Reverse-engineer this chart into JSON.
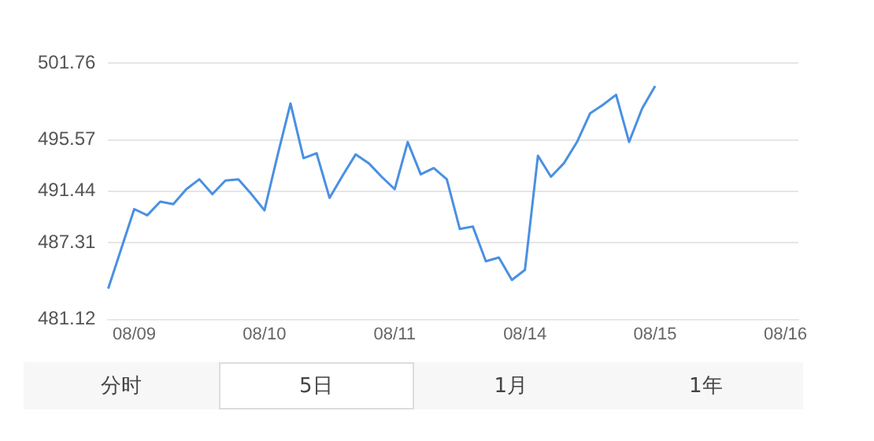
{
  "chart_data": {
    "type": "line",
    "categories": [
      null,
      null,
      "08/09",
      null,
      null,
      null,
      null,
      null,
      null,
      null,
      null,
      null,
      "08/10",
      null,
      null,
      null,
      null,
      null,
      null,
      null,
      null,
      null,
      "08/11",
      null,
      null,
      null,
      null,
      null,
      null,
      null,
      null,
      null,
      "08/14",
      null,
      null,
      null,
      null,
      null,
      null,
      null,
      null,
      null,
      "08/15",
      null,
      null,
      null,
      null,
      null,
      null,
      null,
      null,
      null,
      "08/16",
      null
    ],
    "series": [
      {
        "color": "#4a90e2",
        "values": [
          483.6,
          486.8,
          490.0,
          489.5,
          490.6,
          490.4,
          491.6,
          492.4,
          491.2,
          492.3,
          492.4,
          491.2,
          489.9,
          494.3,
          498.5,
          494.1,
          494.5,
          490.9,
          492.7,
          494.4,
          493.7,
          492.6,
          491.6,
          495.4,
          492.8,
          493.3,
          492.4,
          488.4,
          488.6,
          485.8,
          486.1,
          484.3,
          485.1,
          494.3,
          492.6,
          493.7,
          495.4,
          497.7,
          498.4,
          499.2,
          495.4,
          498.1,
          499.9,
          null,
          null,
          null,
          null,
          null,
          null,
          null,
          null,
          null,
          null,
          null
        ]
      }
    ],
    "ylim": [
      481.12,
      501.76
    ],
    "yticks": [
      481.12,
      487.31,
      491.44,
      495.57,
      501.76
    ],
    "grid": "y",
    "legend": false,
    "marker": "none",
    "line_style": "solid",
    "annotations": [
      "分时",
      "5日",
      "1月",
      "1年"
    ]
  }
}
